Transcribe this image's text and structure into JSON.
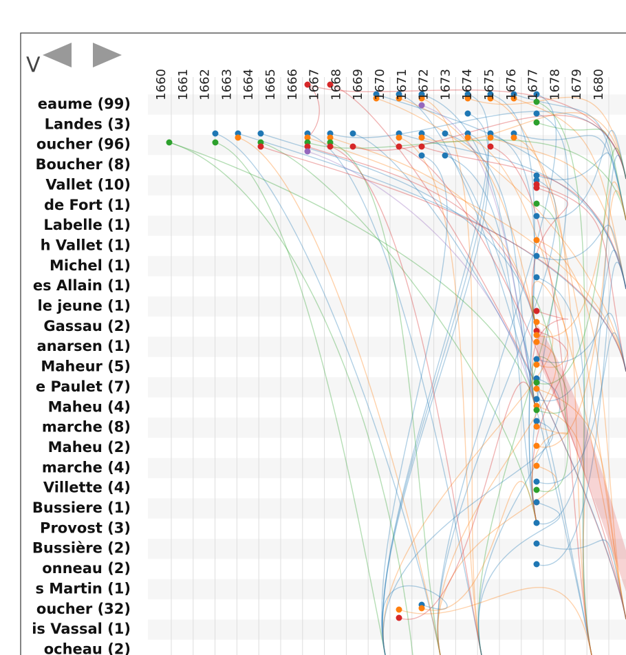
{
  "toolbar": {
    "label": "V"
  },
  "years": [
    "1660",
    "1661",
    "1662",
    "1663",
    "1664",
    "1665",
    "1666",
    "1667",
    "1668",
    "1669",
    "1670",
    "1671",
    "1672",
    "1673",
    "1674",
    "1675",
    "1676",
    "1677",
    "1678",
    "1679",
    "1680"
  ],
  "rows": [
    "eaume (99)",
    "Landes (3)",
    "oucher (96)",
    "Boucher (8)",
    "Vallet (10)",
    "de Fort (1)",
    "Labelle (1)",
    "h Vallet (1)",
    "Michel (1)",
    "es Allain (1)",
    "le jeune (1)",
    "Gassau (2)",
    "anarsen (1)",
    "Maheur (5)",
    "e Paulet (7)",
    "Maheu (4)",
    "marche (8)",
    "Maheu (2)",
    "marche (4)",
    "Villette (4)",
    "Bussiere (1)",
    "Provost (3)",
    "Bussière (2)",
    "onneau (2)",
    "s Martin (1)",
    "oucher (32)",
    "is Vassal (1)",
    "ocheau (2)"
  ]
}
